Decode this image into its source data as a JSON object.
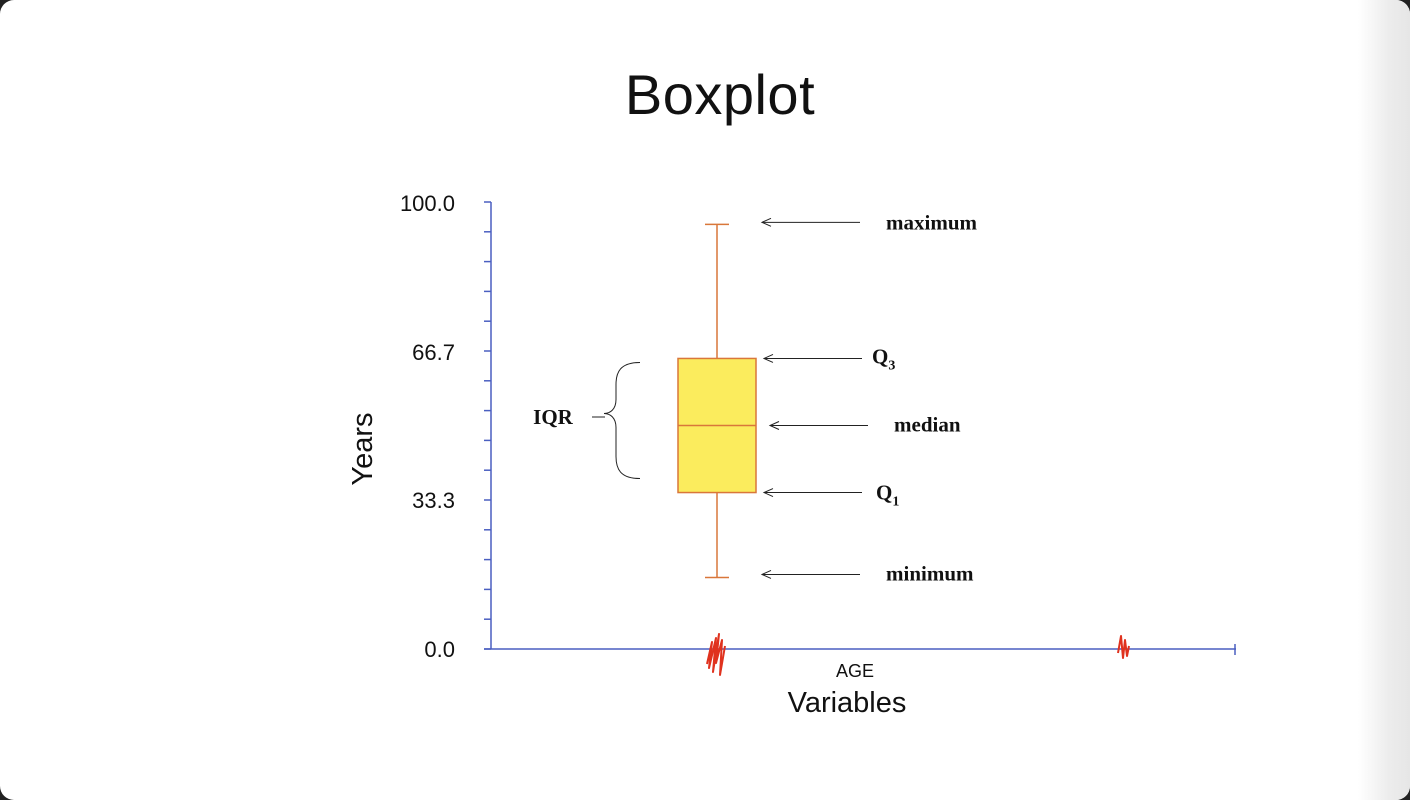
{
  "slide": {
    "title": "Boxplot"
  },
  "chart_data": {
    "type": "box",
    "title": "Boxplot",
    "xlabel": "Variables",
    "ylabel": "Years",
    "ylim": [
      0,
      100
    ],
    "yticks": [
      "0.0",
      "33.3",
      "66.7",
      "100.0"
    ],
    "categories": [
      "AGE"
    ],
    "boxes": [
      {
        "category": "AGE",
        "min": 16,
        "q1": 35,
        "median": 50,
        "q3": 65,
        "max": 95
      }
    ],
    "annotations": {
      "maximum": "maximum",
      "q3": "Q",
      "q3_sub": "3",
      "median": "median",
      "q1": "Q",
      "q1_sub": "1",
      "minimum": "minimum",
      "iqr": "IQR"
    },
    "colors": {
      "axis": "#4a5fc1",
      "box_fill": "#fbec5d",
      "box_stroke": "#d9773a",
      "annotation_arrow": "#222222"
    }
  }
}
